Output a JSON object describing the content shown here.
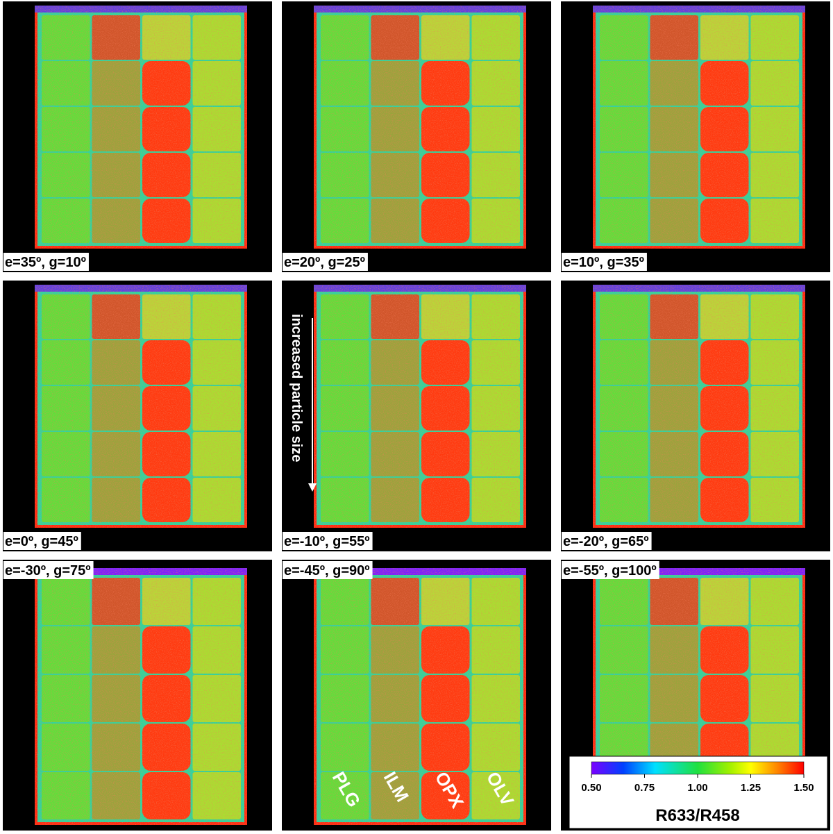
{
  "panels": [
    {
      "label": "e=35º, g=10º"
    },
    {
      "label": "e=20º, g=25º"
    },
    {
      "label": "e=10º, g=35º"
    },
    {
      "label": "e=0º, g=45º"
    },
    {
      "label": "e=-10º, g=55º"
    },
    {
      "label": "e=-20º, g=65º"
    },
    {
      "label": "e=-30º, g=75º"
    },
    {
      "label": "e=-45º, g=90º"
    },
    {
      "label": "e=-55º, g=100º"
    }
  ],
  "annotation": "increased particle size",
  "column_labels": [
    "PLG",
    "ILM",
    "OPX",
    "OLV"
  ],
  "colorbar": {
    "lim": [
      0.5,
      1.5
    ],
    "ticks": [
      {
        "value": 0.5,
        "label": "0.50"
      },
      {
        "value": 0.75,
        "label": "0.75"
      },
      {
        "value": 1,
        "label": "1.00"
      },
      {
        "value": 1.25,
        "label": "1.25"
      },
      {
        "value": 1.5,
        "label": "1.50"
      }
    ],
    "label": "R633/R458"
  }
}
